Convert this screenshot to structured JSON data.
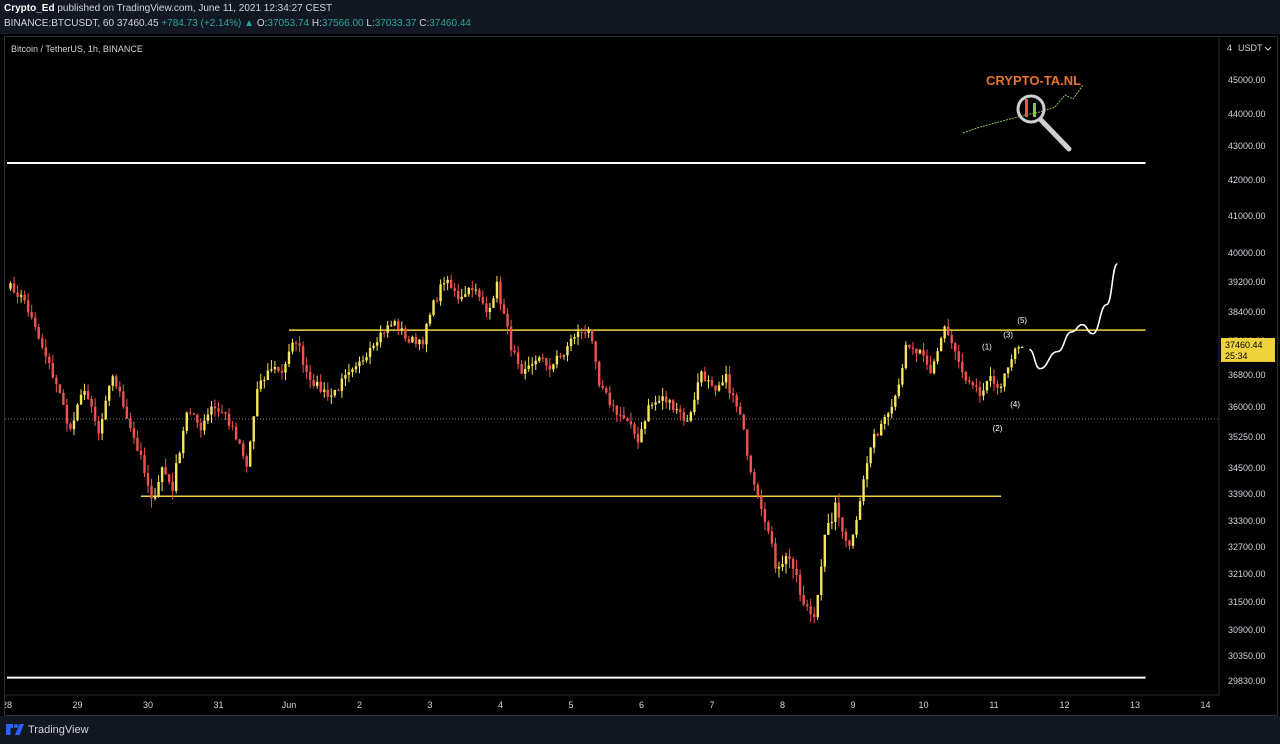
{
  "header": {
    "author": "Crypto_Ed",
    "published": "published on TradingView.com, June 11, 2021 12:34:27 CEST",
    "ticker": "BINANCE:BTCUSDT, 60",
    "last": "37460.45",
    "change": "+784.73 (+2.14%)",
    "change_arrow": "▲",
    "o_label": "O:",
    "o": "37053.74",
    "h_label": "H:",
    "h": "37566.00",
    "l_label": "L:",
    "l": "37033.37",
    "c_label": "C:",
    "c": "37460.44"
  },
  "footer": {
    "brand": "TradingView",
    "logo_icon": "tradingview-logo-icon"
  },
  "chart_data": {
    "type": "candlestick",
    "symbol_label": "Bitcoin / TetherUS, 1h, BINANCE",
    "currency_label": "USDT",
    "axis_menu": "4",
    "price_axis_ticks": [
      45000,
      44000,
      43000,
      42000,
      41000,
      40000,
      39200,
      38400,
      37600,
      36800,
      36000,
      35250,
      34500,
      33900,
      33300,
      32700,
      32100,
      31500,
      30900,
      30350,
      29830
    ],
    "time_axis_ticks": [
      "28",
      "29",
      "30",
      "31",
      "Jun",
      "2",
      "3",
      "4",
      "5",
      "6",
      "7",
      "8",
      "9",
      "10",
      "11",
      "12",
      "13",
      "14"
    ],
    "last_price_label": "37460.44",
    "countdown": "25:34",
    "colors": {
      "up": "#f5e65b",
      "down": "#ef5350",
      "level_line": "#f0d33c",
      "range_line": "#ffffff",
      "price_tag": "#f0d33c",
      "background": "#000000"
    },
    "candle_path": [
      [
        0,
        39150
      ],
      [
        5,
        38700
      ],
      [
        10,
        37400
      ],
      [
        14,
        36600
      ],
      [
        18,
        35400
      ],
      [
        22,
        36500
      ],
      [
        26,
        35300
      ],
      [
        30,
        36800
      ],
      [
        34,
        35800
      ],
      [
        38,
        34700
      ],
      [
        41,
        33700
      ],
      [
        44,
        34500
      ],
      [
        47,
        34050
      ],
      [
        51,
        35900
      ],
      [
        55,
        35500
      ],
      [
        58,
        36050
      ],
      [
        62,
        35800
      ],
      [
        66,
        35000
      ],
      [
        68,
        34500
      ],
      [
        71,
        36400
      ],
      [
        75,
        37000
      ],
      [
        78,
        36900
      ],
      [
        82,
        37650
      ],
      [
        85,
        36900
      ],
      [
        88,
        36500
      ],
      [
        92,
        36300
      ],
      [
        96,
        36700
      ],
      [
        99,
        36900
      ],
      [
        103,
        37500
      ],
      [
        107,
        37900
      ],
      [
        110,
        38100
      ],
      [
        114,
        37600
      ],
      [
        118,
        37650
      ],
      [
        121,
        38600
      ],
      [
        124,
        39250
      ],
      [
        128,
        38800
      ],
      [
        132,
        39100
      ],
      [
        136,
        38400
      ],
      [
        139,
        39100
      ],
      [
        143,
        37500
      ],
      [
        146,
        36700
      ],
      [
        150,
        37200
      ],
      [
        154,
        37000
      ],
      [
        158,
        37300
      ],
      [
        161,
        37750
      ],
      [
        165,
        37950
      ],
      [
        168,
        36500
      ],
      [
        172,
        36000
      ],
      [
        175,
        35700
      ],
      [
        179,
        35200
      ],
      [
        182,
        36000
      ],
      [
        186,
        36200
      ],
      [
        190,
        36000
      ],
      [
        193,
        35600
      ],
      [
        197,
        36900
      ],
      [
        201,
        36300
      ],
      [
        204,
        36700
      ],
      [
        208,
        35750
      ],
      [
        211,
        34500
      ],
      [
        215,
        33400
      ],
      [
        218,
        32300
      ],
      [
        222,
        32500
      ],
      [
        226,
        31400
      ],
      [
        229,
        31200
      ],
      [
        232,
        32900
      ],
      [
        235,
        33600
      ],
      [
        239,
        32700
      ],
      [
        242,
        33800
      ],
      [
        245,
        35000
      ],
      [
        249,
        35800
      ],
      [
        252,
        36300
      ],
      [
        255,
        37400
      ],
      [
        259,
        37300
      ],
      [
        262,
        36800
      ],
      [
        266,
        38000
      ],
      [
        269,
        37300
      ],
      [
        272,
        36600
      ],
      [
        276,
        36300
      ],
      [
        279,
        36650
      ],
      [
        282,
        36550
      ],
      [
        286,
        37300
      ],
      [
        288,
        37460
      ]
    ],
    "levels": [
      {
        "name": "upper-range-line",
        "price": 42500,
        "from_index": 0,
        "to_index": 323,
        "color": "#ffffff"
      },
      {
        "name": "lower-range-line",
        "price": 29900,
        "from_index": 0,
        "to_index": 323,
        "color": "#ffffff"
      },
      {
        "name": "resistance-line",
        "price": 37900,
        "from_index": 80,
        "to_index": 323,
        "color": "#f0d33c"
      },
      {
        "name": "support-line",
        "price": 33850,
        "from_index": 38,
        "to_index": 282,
        "color": "#f0d33c"
      }
    ],
    "dotted_level_price": 35700,
    "wave_labels": [
      {
        "label": "(1)",
        "index": 278,
        "price": 37400
      },
      {
        "label": "(2)",
        "index": 281,
        "price": 35400
      },
      {
        "label": "(3)",
        "index": 284,
        "price": 37700
      },
      {
        "label": "(4)",
        "index": 286,
        "price": 36000
      },
      {
        "label": "(5)",
        "index": 288,
        "price": 38100
      }
    ],
    "projection": [
      [
        290,
        37400
      ],
      [
        293,
        36950
      ],
      [
        298,
        37350
      ],
      [
        302,
        37850
      ],
      [
        305,
        38050
      ],
      [
        308,
        37800
      ],
      [
        312,
        38600
      ],
      [
        315,
        39700
      ]
    ],
    "watermark": "CRYPTO-TA.NL"
  }
}
